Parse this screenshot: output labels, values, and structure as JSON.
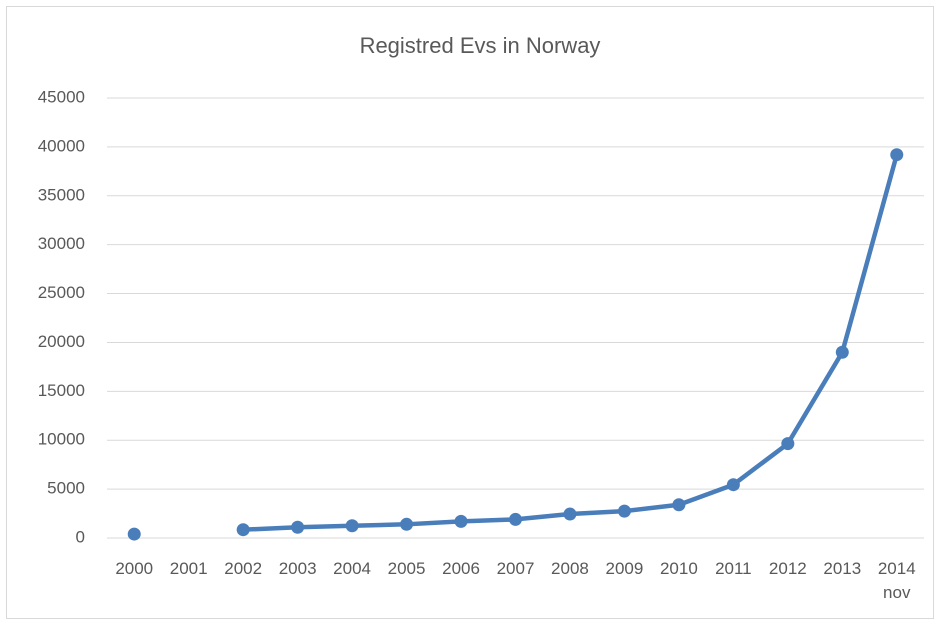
{
  "chart_data": {
    "type": "line",
    "title": "Registred Evs in Norway",
    "categories": [
      "2000",
      "2001",
      "2002",
      "2003",
      "2004",
      "2005",
      "2006",
      "2007",
      "2008",
      "2009",
      "2010",
      "2011",
      "2012",
      "2013",
      "2014 nov"
    ],
    "series": [
      {
        "name": "Registred Evs",
        "color": "#4a7ebb",
        "values": [
          400,
          null,
          850,
          1100,
          1250,
          1400,
          1700,
          1900,
          2450,
          2750,
          3400,
          5450,
          9650,
          19000,
          39200
        ]
      }
    ],
    "ylim": [
      0,
      45000
    ],
    "yticks": [
      0,
      5000,
      10000,
      15000,
      20000,
      25000,
      30000,
      35000,
      40000,
      45000
    ],
    "grid": true
  }
}
